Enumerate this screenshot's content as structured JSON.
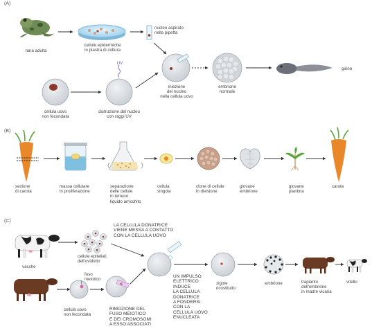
{
  "sections": {
    "a": {
      "label": "(A)",
      "labels": {
        "frog": "rana adulta",
        "dish": [
          "cellule epidermiche",
          "in piastra di coltura"
        ],
        "nucleus": [
          "nucleo aspirato",
          "nella pipetta"
        ],
        "egg": [
          "cellula uovo",
          "non fecondata"
        ],
        "uv": [
          "distruzione del nucleo",
          "con raggi UV"
        ],
        "uv_tag": "UV",
        "injection": [
          "iniezione",
          "del nucleo",
          "nella cellula uovo"
        ],
        "embryo": [
          "embrione",
          "normale"
        ],
        "tadpole": "girino"
      }
    },
    "b": {
      "label": "(B)",
      "labels": {
        "carrot_section": [
          "sezione",
          "di carota"
        ],
        "mass": [
          "massa cellulare",
          "in proliferazione"
        ],
        "separation": [
          "separazione",
          "delle cellule",
          "in terreno",
          "liquido arricchito"
        ],
        "single": [
          "cellula",
          "singola"
        ],
        "clone": [
          "clone di cellule",
          "in divisione"
        ],
        "young_embryo": [
          "giovane",
          "embrione"
        ],
        "young_plant": [
          "giovane",
          "piantina"
        ],
        "carrot": "carota"
      }
    },
    "c": {
      "label": "(C)",
      "labels": {
        "cows": "vacche",
        "oviduct": [
          "cellule epiteliali",
          "dell'ovidotto"
        ],
        "donor_caption": [
          "LA CELLULA DONATRICE",
          "VIENE MESSA A CONTATTO",
          "CON LA CELLULA UOVO"
        ],
        "meiotic": [
          "fuso",
          "meiotico"
        ],
        "egg": [
          "cellula uovo",
          "non fecondata"
        ],
        "removal": [
          "RIMOZIONE DEL",
          "FUSO MEIOTICO",
          "E DEI CROMOSOMI",
          "A ESSO ASSOCIATI"
        ],
        "impulse": [
          "UN IMPULSO",
          "ELETTRICO",
          "INDUCE",
          "LA CELLULA",
          "DONATRICE",
          "A FONDERSI",
          "CON LA",
          "CELLULA UOVO",
          "ENUCLEATA"
        ],
        "zygote": [
          "zigote",
          "ricostituito"
        ],
        "embryo": "embrione",
        "transplant": [
          "trapianto",
          "dell'embrione",
          "in madre vicaria"
        ],
        "calf": "vitello"
      }
    }
  },
  "colors": {
    "line": "#333333",
    "cell": "#d7dbe0",
    "nucleus": "#8a3a2a",
    "carrot": "#e8882a",
    "leaf": "#5aa53a",
    "pink": "#d36aa8",
    "blue": "#8ec6e6",
    "frog": "#6e8a55"
  }
}
